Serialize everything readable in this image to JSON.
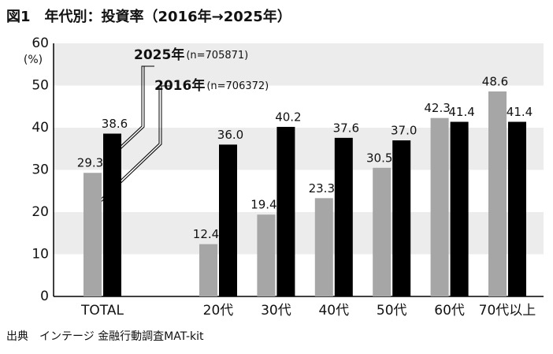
{
  "chart_data": {
    "type": "bar",
    "title": "図1　年代別：投資率（2016年→2025年）",
    "y_unit": "(%)",
    "categories": [
      "TOTAL",
      "20代",
      "30代",
      "40代",
      "50代",
      "60代",
      "70代以上"
    ],
    "series": [
      {
        "name": "2016年",
        "sample": "(n=706372)",
        "color": "#a6a6a6",
        "values": [
          29.3,
          12.4,
          19.4,
          23.3,
          30.5,
          42.3,
          48.6
        ],
        "value_labels": [
          "29.3",
          "12.4",
          "19.4",
          "23.3",
          "30.5",
          "42.3",
          "48.6"
        ]
      },
      {
        "name": "2025年",
        "sample": "(n=705871)",
        "color": "#000000",
        "values": [
          38.6,
          36.0,
          40.2,
          37.6,
          37.0,
          41.4,
          41.4
        ],
        "value_labels": [
          "38.6",
          "36.0",
          "40.2",
          "37.6",
          "37.0",
          "41.4",
          "41.4"
        ]
      }
    ],
    "ylim": [
      0,
      60
    ],
    "yticks": [
      0,
      10,
      20,
      30,
      40,
      50,
      60
    ],
    "grid": "bands",
    "source": "出典　インテージ 金融行動調査MAT-kit"
  }
}
